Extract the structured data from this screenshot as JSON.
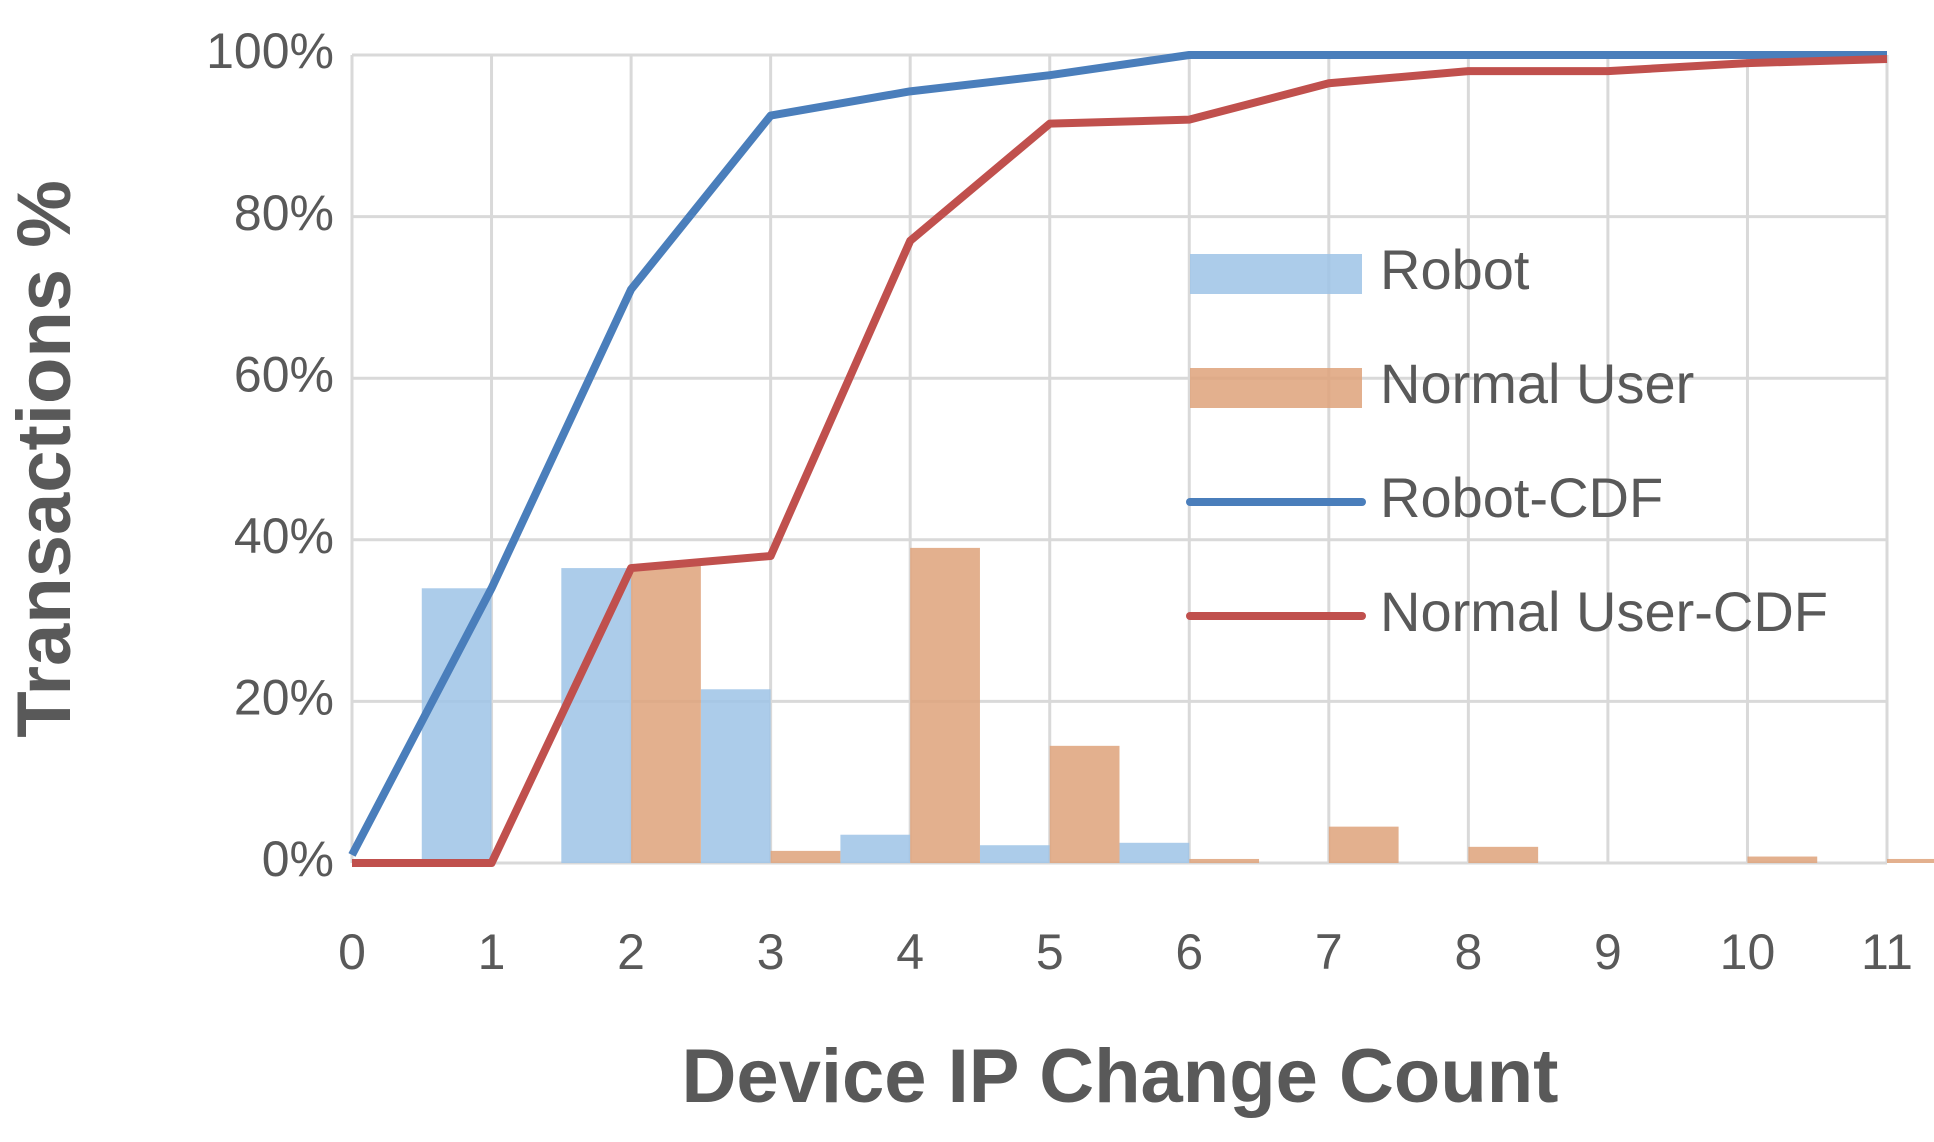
{
  "chart_data": {
    "type": "bar-line",
    "x_label": "Device IP Change Count",
    "y_label": "Transactions %",
    "x": [
      0,
      1,
      2,
      3,
      4,
      5,
      6,
      7,
      8,
      9,
      10,
      11
    ],
    "series": [
      {
        "name": "Robot",
        "type": "bar",
        "color": "#9dc3e6",
        "values": [
          null,
          34,
          36.5,
          21.5,
          3.5,
          2.2,
          2.5,
          0,
          0,
          0,
          0,
          0
        ]
      },
      {
        "name": "Normal User",
        "type": "bar",
        "color": "#dea27a",
        "values": [
          null,
          0,
          37,
          1.5,
          39,
          14.5,
          0.5,
          4.5,
          2,
          0,
          0.8,
          0.5
        ]
      },
      {
        "name": "Robot-CDF",
        "type": "line",
        "color": "#4a7ebb",
        "values": [
          1,
          34,
          71,
          92.5,
          95.5,
          97.5,
          100,
          100,
          100,
          100,
          100,
          100
        ]
      },
      {
        "name": "Normal User-CDF",
        "type": "line",
        "color": "#c0504d",
        "values": [
          0,
          0,
          36.5,
          38,
          77,
          91.5,
          92,
          96.5,
          98,
          98,
          99,
          99.5
        ]
      }
    ],
    "xlim": [
      0,
      11
    ],
    "xticks": [
      0,
      1,
      2,
      3,
      4,
      5,
      6,
      7,
      8,
      9,
      10,
      11
    ],
    "ylim": [
      0,
      100
    ],
    "yticks": [
      {
        "value": 0,
        "label": "0%"
      },
      {
        "value": 20,
        "label": "20%"
      },
      {
        "value": 40,
        "label": "40%"
      },
      {
        "value": 60,
        "label": "60%"
      },
      {
        "value": 80,
        "label": "80%"
      },
      {
        "value": 100,
        "label": "100%"
      }
    ],
    "grid": true,
    "legend_position": "right"
  }
}
